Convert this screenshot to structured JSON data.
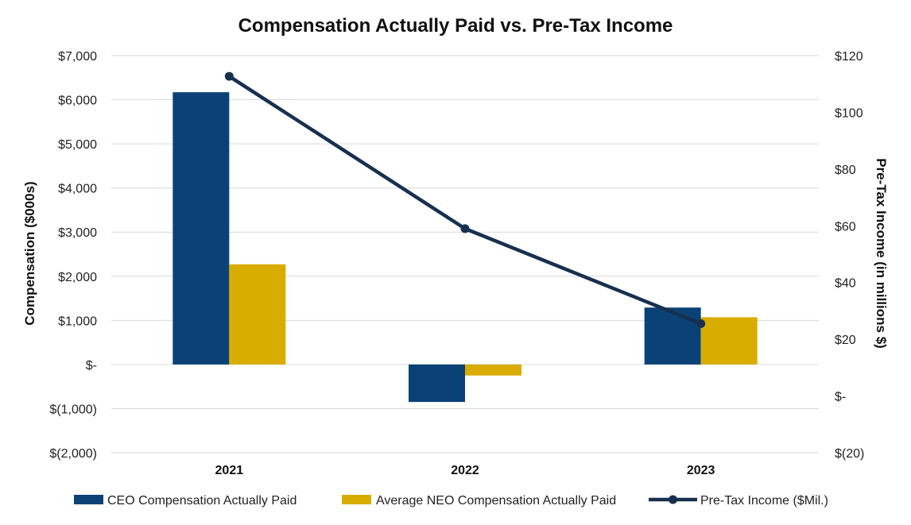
{
  "chart_data": {
    "type": "bar+line",
    "title": "Compensation Actually Paid vs. Pre-Tax Income",
    "categories": [
      "2021",
      "2022",
      "2023"
    ],
    "y_left": {
      "label": "Compensation ($000s)",
      "range": [
        -2000,
        7000
      ],
      "ticks": [
        7000,
        6000,
        5000,
        4000,
        3000,
        2000,
        1000,
        0,
        -1000,
        -2000
      ],
      "tick_labels": [
        "$7,000",
        "$6,000",
        "$5,000",
        "$4,000",
        "$3,000",
        "$2,000",
        "$1,000",
        "$-",
        "$(1,000)",
        "$(2,000)"
      ]
    },
    "y_right": {
      "label": "Pre-Tax Income (in millions $)",
      "range": [
        -20,
        120
      ],
      "ticks": [
        120,
        100,
        80,
        60,
        40,
        20,
        0,
        -20
      ],
      "tick_labels": [
        "$120",
        "$100",
        "$80",
        "$60",
        "$40",
        "$20",
        "$-",
        "$(20)"
      ]
    },
    "series": [
      {
        "name": "CEO Compensation Actually Paid",
        "type": "bar",
        "axis": "left",
        "color": "#0a4277",
        "values": [
          6170,
          -850,
          1290
        ]
      },
      {
        "name": "Average NEO Compensation Actually Paid",
        "type": "bar",
        "axis": "left",
        "color": "#d9ac00",
        "values": [
          2270,
          -250,
          1070
        ]
      },
      {
        "name": "Pre-Tax Income ($Mil.)",
        "type": "line",
        "axis": "right",
        "color": "#17304f",
        "values": [
          112.7,
          59,
          25.5
        ]
      }
    ],
    "grid": true,
    "legend_position": "bottom"
  }
}
